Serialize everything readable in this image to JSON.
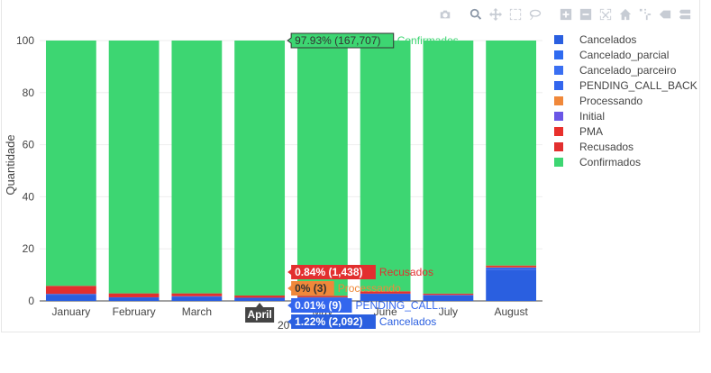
{
  "modebar": {
    "icons": [
      "camera-icon",
      "zoom-icon",
      "pan-icon",
      "box-select-icon",
      "lasso-select-icon",
      "zoom-in-icon",
      "zoom-out-icon",
      "autoscale-icon",
      "reset-axes-icon",
      "spike-lines-icon",
      "hover-closest-icon",
      "hover-compare-icon"
    ]
  },
  "chart_data": {
    "type": "bar",
    "barmode": "stack",
    "categories": [
      "January",
      "February",
      "March",
      "April",
      "May",
      "June",
      "July",
      "August"
    ],
    "ylabel": "Quantidade",
    "xlabel_partial": "20",
    "ylim": [
      0,
      100
    ],
    "yticks": [
      0,
      20,
      40,
      60,
      80,
      100
    ],
    "grid": true,
    "legend_position": "right",
    "series": [
      {
        "name": "Cancelados",
        "color": "#2a5fe0",
        "values": [
          2.4,
          1.2,
          1.6,
          1.22,
          1.3,
          2.6,
          2.2,
          12.0
        ]
      },
      {
        "name": "Cancelado_parcial",
        "color": "#2f6bf0",
        "values": [
          0,
          0,
          0,
          0,
          0,
          0,
          0,
          0
        ]
      },
      {
        "name": "Cancelado_parceiro",
        "color": "#3a6ff2",
        "values": [
          0,
          0,
          0,
          0,
          0,
          0,
          0,
          0
        ]
      },
      {
        "name": "PENDING_CALL_BACK",
        "color": "#3366ee",
        "values": [
          0.3,
          0.2,
          0.2,
          0.01,
          0.1,
          0.2,
          0.1,
          0.8
        ]
      },
      {
        "name": "Processando",
        "color": "#f0883a",
        "values": [
          0,
          0,
          0,
          0,
          0,
          0,
          0,
          0.2
        ]
      },
      {
        "name": "Initial",
        "color": "#6a56e6",
        "values": [
          0,
          0,
          0,
          0,
          0,
          0,
          0,
          0
        ]
      },
      {
        "name": "PMA",
        "color": "#e8302c",
        "values": [
          0,
          0,
          0,
          0,
          0,
          0,
          0,
          0
        ]
      },
      {
        "name": "Recusados",
        "color": "#e22f2f",
        "values": [
          3.1,
          1.5,
          1.1,
          0.84,
          0.6,
          0.9,
          0.5,
          0.6
        ]
      },
      {
        "name": "Confirmados",
        "color": "#3dd672",
        "values": [
          94.2,
          97.1,
          97.1,
          97.93,
          98.0,
          96.3,
          97.2,
          86.4
        ]
      }
    ],
    "hover": {
      "category": "April",
      "items": [
        {
          "value": "97.93% (167,707)",
          "name": "Confirmados",
          "color": "#3dd672",
          "text_color": "#3dd672",
          "value_color": "#333333"
        },
        {
          "value": "0.84% (1,438)",
          "name": "Recusados",
          "color": "#e22f2f",
          "text_color": "#e22f2f",
          "value_color": "#ffffff"
        },
        {
          "value": "0% (3)",
          "name": "Processando",
          "color": "#f0883a",
          "text_color": "#f0883a",
          "value_color": "#333333"
        },
        {
          "value": "0.01% (9)",
          "name": "PENDING_CALL...",
          "color": "#3366ee",
          "text_color": "#3366ee",
          "value_color": "#ffffff"
        },
        {
          "value": "1.22% (2,092)",
          "name": "Cancelados",
          "color": "#2a5fe0",
          "text_color": "#2a5fe0",
          "value_color": "#ffffff"
        }
      ]
    }
  }
}
